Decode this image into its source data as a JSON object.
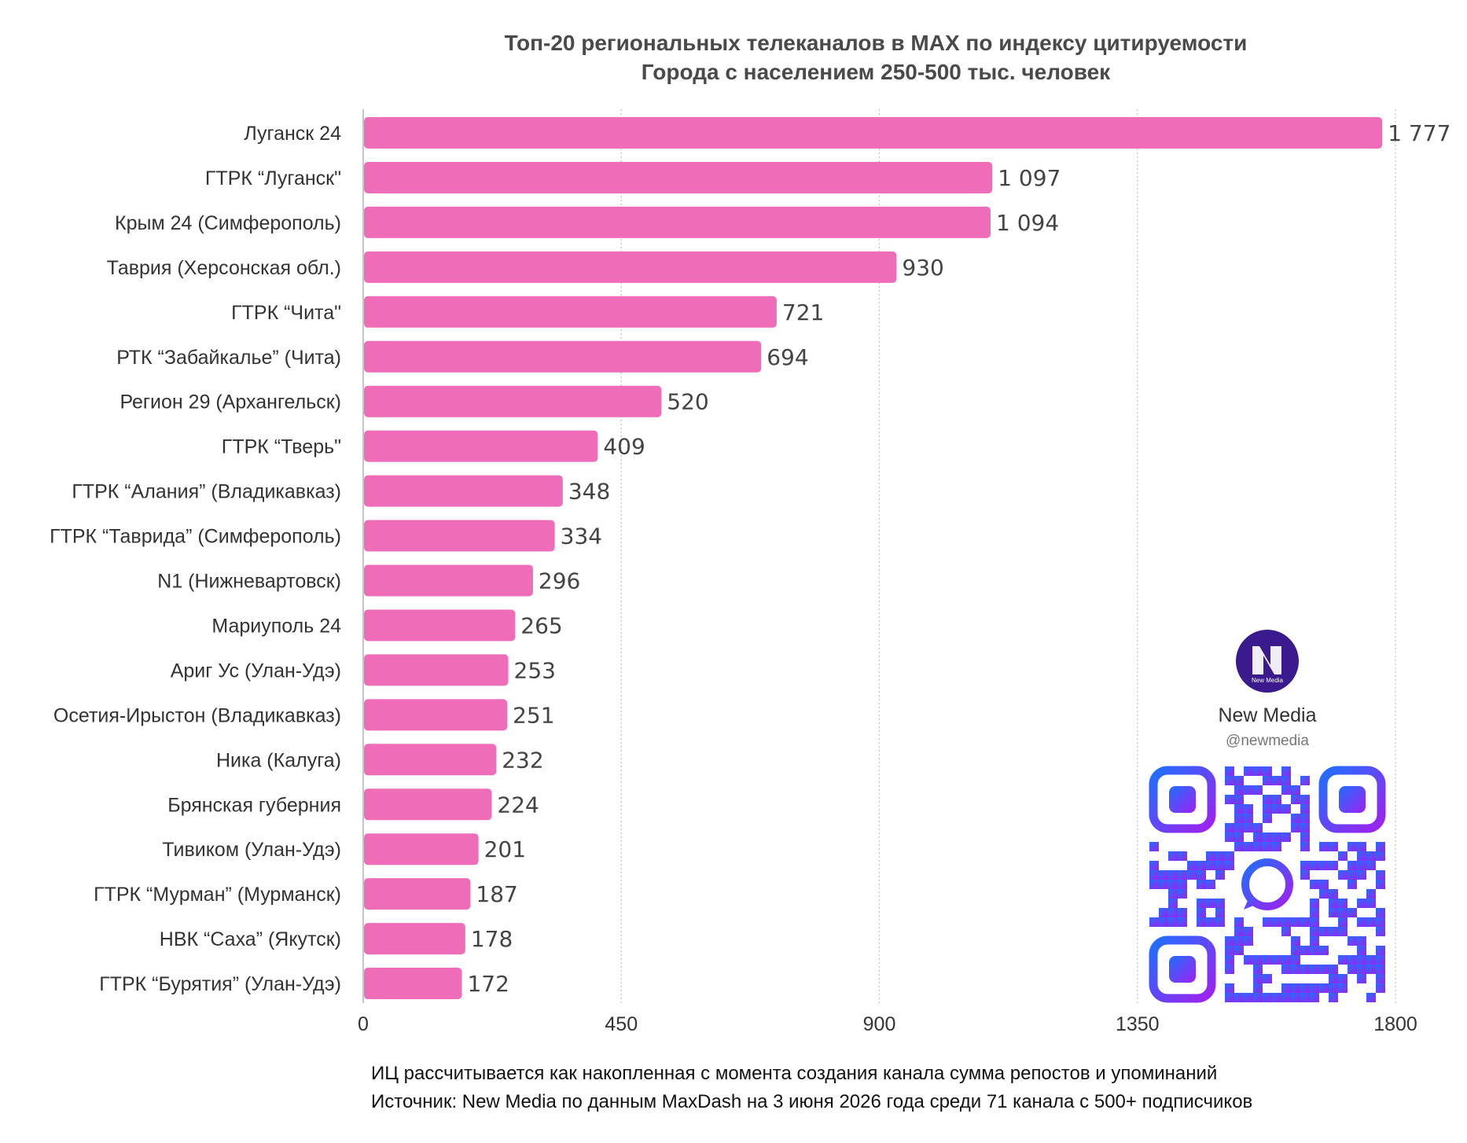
{
  "chart_data": {
    "type": "bar",
    "orientation": "horizontal",
    "title": "Топ-20 региональных телеканалов в MAX по индексу цитируемости",
    "subtitle": "Города с населением 250-500 тыс. человек",
    "categories": [
      "Луганск 24",
      "ГТРК “Луганск\"",
      "Крым 24 (Симферополь)",
      "Таврия (Херсонская обл.)",
      "ГТРК “Чита\"",
      "РТК “Забайкалье” (Чита)",
      "Регион 29 (Архангельск)",
      "ГТРК “Тверь\"",
      "ГТРК “Алания” (Владикавказ)",
      "ГТРК “Таврида” (Симферополь)",
      "N1 (Нижневартовск)",
      "Мариуполь 24",
      "Ариг Ус (Улан-Удэ)",
      "Осетия-Ирыстон (Владикавказ)",
      "Ника (Калуга)",
      "Брянская губерния",
      "Тивиком (Улан-Удэ)",
      "ГТРК “Мурман” (Мурманск)",
      "НВК “Саха” (Якутск)",
      "ГТРК “Бурятия” (Улан-Удэ)"
    ],
    "values": [
      1777,
      1097,
      1094,
      930,
      721,
      694,
      520,
      409,
      348,
      334,
      296,
      265,
      253,
      251,
      232,
      224,
      201,
      187,
      178,
      172
    ],
    "value_labels": [
      "1 777",
      "1 097",
      "1 094",
      "930",
      "721",
      "694",
      "520",
      "409",
      "348",
      "334",
      "296",
      "265",
      "253",
      "251",
      "232",
      "224",
      "201",
      "187",
      "178",
      "172"
    ],
    "xlim": [
      0,
      1800
    ],
    "xticks": [
      0,
      450,
      900,
      1350,
      1800
    ],
    "xtick_labels": [
      "0",
      "450",
      "900",
      "1350",
      "1800"
    ],
    "xlabel": "",
    "ylabel": "",
    "grid": "vertical dotted",
    "legend": "none",
    "bar_color": "#ef6db8"
  },
  "footnotes": {
    "line1": "ИЦ рассчитывается как накопленная с момента создания канала сумма репостов и упоминаний",
    "line2": "Источник: New Media по данным MaxDash на 3 июня 2026 года среди 71 канала с 500+ подписчиков"
  },
  "brand": {
    "name": "New Media",
    "handle": "@newmedia",
    "logo_letters": "New Media",
    "logo_icon": "newmedia-logo-icon",
    "qr_icon": "qr-code-icon",
    "logo_color": "#3a1a8c",
    "qr_gradient_start": "#1f6fff",
    "qr_gradient_end": "#a020f0"
  }
}
